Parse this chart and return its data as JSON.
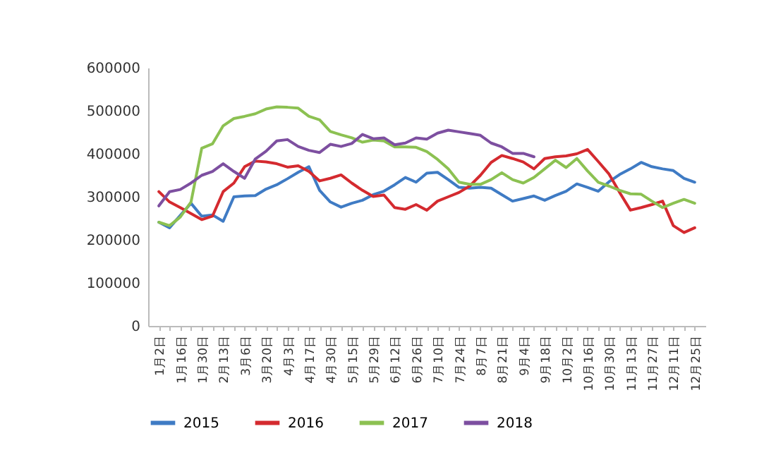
{
  "chart_data": {
    "type": "line",
    "categories": [
      "1月2日",
      null,
      "1月16日",
      null,
      "1月30日",
      null,
      "2月13日",
      null,
      "3月6日",
      null,
      "3月20日",
      null,
      "4月3日",
      null,
      "4月17日",
      null,
      "4月30日",
      null,
      "5月15日",
      null,
      "5月29日",
      null,
      "6月12日",
      null,
      "6月26日",
      null,
      "7月10日",
      null,
      "7月24日",
      null,
      "8月7日",
      null,
      "8月21日",
      null,
      "9月4日",
      null,
      "9月18日",
      null,
      "10月2日",
      null,
      "10月16日",
      null,
      "10月30日",
      null,
      "11月13日",
      null,
      "11月27日",
      null,
      "12月11日",
      null,
      "12月25日"
    ],
    "series": [
      {
        "name": "2015",
        "color": "#3f7bc4",
        "values": [
          241000,
          228000,
          257000,
          285000,
          255000,
          258000,
          243000,
          300000,
          302000,
          303000,
          318000,
          328000,
          342000,
          357000,
          370000,
          315000,
          288000,
          276000,
          285000,
          292000,
          305000,
          313000,
          328000,
          345000,
          334000,
          355000,
          357000,
          340000,
          322000,
          320000,
          322000,
          320000,
          305000,
          290000,
          296000,
          302000,
          292000,
          303000,
          313000,
          330000,
          322000,
          313000,
          335000,
          352000,
          365000,
          380000,
          370000,
          365000,
          361000,
          343000,
          334000
        ]
      },
      {
        "name": "2016",
        "color": "#d42a2f",
        "values": [
          312000,
          288000,
          275000,
          261000,
          247000,
          255000,
          312000,
          332000,
          370000,
          383000,
          381000,
          377000,
          369000,
          372000,
          359000,
          337000,
          343000,
          351000,
          332000,
          315000,
          301000,
          304000,
          275000,
          271000,
          282000,
          269000,
          290000,
          300000,
          310000,
          325000,
          350000,
          380000,
          396000,
          389000,
          381000,
          365000,
          389000,
          393000,
          395000,
          400000,
          410000,
          382000,
          353000,
          310000,
          269000,
          275000,
          282000,
          290000,
          233000,
          217000,
          228000
        ]
      },
      {
        "name": "2017",
        "color": "#8cc152",
        "values": [
          241000,
          233000,
          253000,
          288000,
          413000,
          423000,
          465000,
          482000,
          487000,
          493000,
          504000,
          509000,
          508000,
          506000,
          487000,
          479000,
          452000,
          444000,
          437000,
          427000,
          432000,
          430000,
          416000,
          416000,
          415000,
          405000,
          387000,
          365000,
          334000,
          329000,
          329000,
          340000,
          356000,
          340000,
          332000,
          345000,
          365000,
          385000,
          368000,
          389000,
          360000,
          334000,
          325000,
          315000,
          307000,
          306000,
          290000,
          275000,
          285000,
          294000,
          285000
        ]
      },
      {
        "name": "2018",
        "color": "#7d4fa0",
        "values": [
          279000,
          312000,
          317000,
          332000,
          350000,
          359000,
          377000,
          359000,
          343000,
          388000,
          406000,
          430000,
          433000,
          417000,
          408000,
          403000,
          422000,
          417000,
          424000,
          445000,
          435000,
          437000,
          421000,
          425000,
          437000,
          434000,
          448000,
          455000,
          451000,
          447000,
          443000,
          425000,
          416000,
          401000,
          401000,
          393000,
          null,
          null,
          null,
          null,
          null,
          null,
          null,
          null,
          null,
          null,
          null,
          null,
          null,
          null,
          null
        ]
      }
    ],
    "ylim": [
      0,
      600000
    ],
    "yticks": [
      0,
      100000,
      200000,
      300000,
      400000,
      500000,
      600000
    ],
    "legend": "bottom"
  }
}
